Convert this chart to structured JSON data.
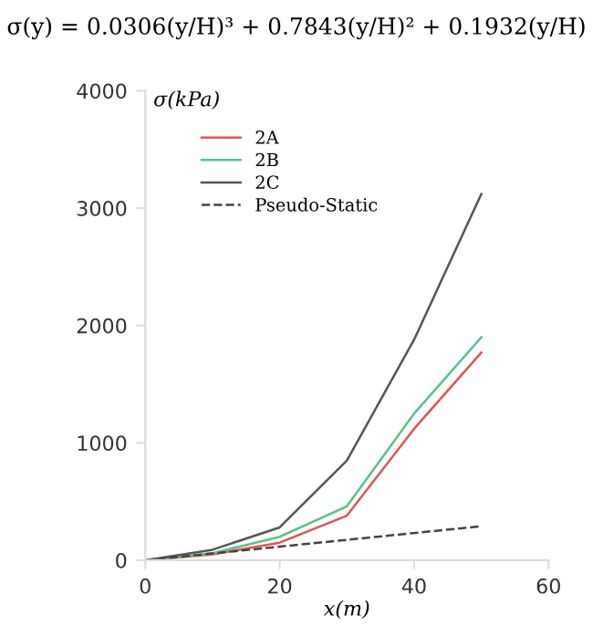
{
  "chart_data": {
    "type": "line",
    "annotations": [
      "σ(y) = 0.0306(y/H)³ + 0.7843(y/H)² + 0.1932(y/H)"
    ],
    "xlabel": "x(m)",
    "ylabel": "σ(kPa)",
    "xlim": [
      0,
      60
    ],
    "xticks": [
      0,
      20,
      40,
      60
    ],
    "ylim": [
      0,
      4000
    ],
    "yticks": [
      0,
      1000,
      2000,
      3000,
      4000
    ],
    "grid": false,
    "legend": "top left",
    "line_style": "solid",
    "marker": "none",
    "series": [
      {
        "name": "2A",
        "color": "#e05555",
        "x": [
          0,
          10,
          20,
          30,
          40,
          50
        ],
        "values": [
          0,
          50,
          150,
          380,
          1120,
          1770
        ]
      },
      {
        "name": "2B",
        "color": "#5cc08a",
        "x": [
          0,
          10,
          20,
          30,
          40,
          50
        ],
        "values": [
          0,
          60,
          200,
          460,
          1250,
          1900
        ]
      },
      {
        "name": "2C",
        "color": "#555555",
        "x": [
          0,
          10,
          20,
          30,
          40,
          50
        ],
        "values": [
          0,
          90,
          280,
          850,
          1880,
          3120
        ]
      },
      {
        "name": "Pseudo-Static",
        "color": "#444444",
        "line_style": "dashed",
        "x": [
          0,
          50
        ],
        "values": [
          0,
          290
        ]
      }
    ]
  }
}
